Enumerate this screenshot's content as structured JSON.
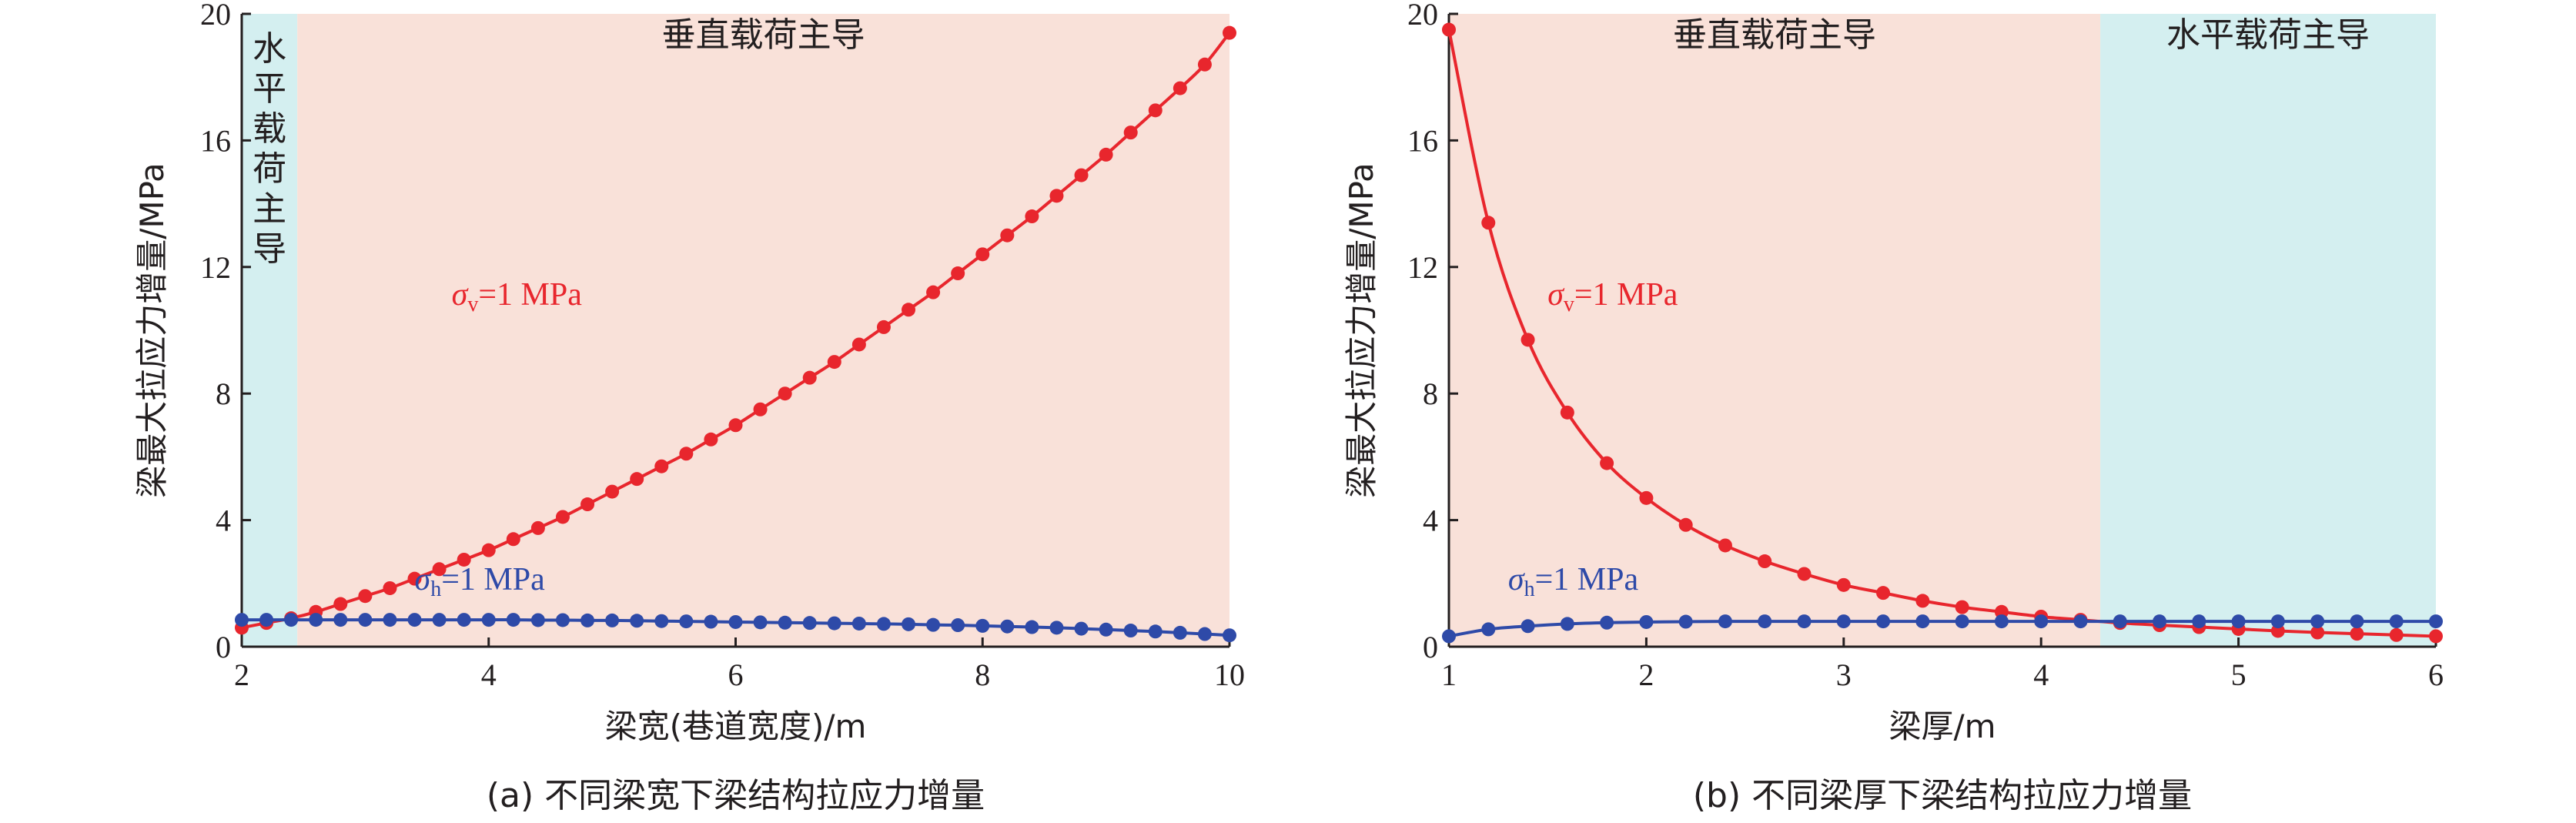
{
  "colors": {
    "red": "#e8262d",
    "blue": "#2e4aa8",
    "pink_region": "#f9e1d9",
    "cyan_region": "#d4eff0",
    "axis": "#231f20"
  },
  "chart_data": [
    {
      "type": "line",
      "xlabel": "梁宽(巷道宽度)/m",
      "ylabel": "梁最大拉应力增量/MPa",
      "caption": "(a) 不同梁宽下梁结构拉应力增量",
      "xlim": [
        2,
        10
      ],
      "ylim": [
        0,
        20
      ],
      "xticks": [
        2,
        4,
        6,
        8,
        10
      ],
      "yticks": [
        0,
        4,
        8,
        12,
        16,
        20
      ],
      "regions": [
        {
          "label": "水平载荷主导",
          "x0": 2,
          "x1": 2.45,
          "color": "cyan",
          "vertical": true
        },
        {
          "label": "垂直载荷主导",
          "x0": 2.45,
          "x1": 10,
          "color": "pink",
          "vertical": false
        }
      ],
      "series": [
        {
          "name_main": "σ",
          "name_sub": "v",
          "name_rest": "=1 MPa",
          "color": "red",
          "label_at": [
            3.7,
            10.8
          ],
          "x": [
            2,
            2.2,
            2.4,
            2.6,
            2.8,
            3,
            3.2,
            3.4,
            3.6,
            3.8,
            4,
            4.2,
            4.4,
            4.6,
            4.8,
            5,
            5.2,
            5.4,
            5.6,
            5.8,
            6,
            6.2,
            6.4,
            6.6,
            6.8,
            7,
            7.2,
            7.4,
            7.6,
            7.8,
            8,
            8.2,
            8.4,
            8.6,
            8.8,
            9,
            9.2,
            9.4,
            9.6,
            9.8,
            10
          ],
          "y": [
            0.6,
            0.75,
            0.9,
            1.1,
            1.35,
            1.6,
            1.85,
            2.15,
            2.45,
            2.75,
            3.05,
            3.4,
            3.75,
            4.1,
            4.5,
            4.9,
            5.3,
            5.7,
            6.1,
            6.55,
            7.0,
            7.5,
            8.0,
            8.5,
            9.0,
            9.55,
            10.1,
            10.65,
            11.2,
            11.8,
            12.4,
            13.0,
            13.6,
            14.25,
            14.9,
            15.55,
            16.25,
            16.95,
            17.65,
            18.4,
            19.4
          ]
        },
        {
          "name_main": "σ",
          "name_sub": "h",
          "name_rest": "=1 MPa",
          "color": "blue",
          "label_at": [
            3.4,
            1.8
          ],
          "x": [
            2,
            2.2,
            2.4,
            2.6,
            2.8,
            3,
            3.2,
            3.4,
            3.6,
            3.8,
            4,
            4.2,
            4.4,
            4.6,
            4.8,
            5,
            5.2,
            5.4,
            5.6,
            5.8,
            6,
            6.2,
            6.4,
            6.6,
            6.8,
            7,
            7.2,
            7.4,
            7.6,
            7.8,
            8,
            8.2,
            8.4,
            8.6,
            8.8,
            9,
            9.2,
            9.4,
            9.6,
            9.8,
            10
          ],
          "y": [
            0.85,
            0.85,
            0.85,
            0.85,
            0.85,
            0.85,
            0.85,
            0.85,
            0.85,
            0.85,
            0.85,
            0.85,
            0.84,
            0.84,
            0.83,
            0.83,
            0.82,
            0.81,
            0.8,
            0.79,
            0.78,
            0.77,
            0.76,
            0.75,
            0.74,
            0.73,
            0.72,
            0.71,
            0.69,
            0.68,
            0.66,
            0.64,
            0.62,
            0.6,
            0.57,
            0.54,
            0.51,
            0.48,
            0.44,
            0.4,
            0.36
          ]
        }
      ]
    },
    {
      "type": "line",
      "xlabel": "梁厚/m",
      "ylabel": "梁最大拉应力增量/MPa",
      "caption": "(b) 不同梁厚下梁结构拉应力增量",
      "xlim": [
        1,
        6
      ],
      "ylim": [
        0,
        20
      ],
      "xticks": [
        1,
        2,
        3,
        4,
        5,
        6
      ],
      "yticks": [
        0,
        4,
        8,
        12,
        16,
        20
      ],
      "regions": [
        {
          "label": "垂直载荷主导",
          "x0": 1,
          "x1": 4.3,
          "color": "pink",
          "vertical": false
        },
        {
          "label": "水平载荷主导",
          "x0": 4.3,
          "x1": 6,
          "color": "cyan",
          "vertical": false
        }
      ],
      "series": [
        {
          "name_main": "σ",
          "name_sub": "v",
          "name_rest": "=1 MPa",
          "color": "red",
          "label_at": [
            1.5,
            10.8
          ],
          "x": [
            1,
            1.2,
            1.4,
            1.6,
            1.8,
            2,
            2.2,
            2.4,
            2.6,
            2.8,
            3,
            3.2,
            3.4,
            3.6,
            3.8,
            4,
            4.2,
            4.4,
            4.6,
            4.8,
            5,
            5.2,
            5.4,
            5.6,
            5.8,
            6
          ],
          "y": [
            19.5,
            13.4,
            9.7,
            7.4,
            5.8,
            4.7,
            3.85,
            3.2,
            2.7,
            2.3,
            1.95,
            1.7,
            1.45,
            1.25,
            1.1,
            0.95,
            0.85,
            0.75,
            0.68,
            0.62,
            0.56,
            0.5,
            0.45,
            0.41,
            0.37,
            0.33
          ]
        },
        {
          "name_main": "σ",
          "name_sub": "h",
          "name_rest": "=1 MPa",
          "color": "blue",
          "label_at": [
            1.3,
            1.8
          ],
          "x": [
            1,
            1.2,
            1.4,
            1.6,
            1.8,
            2,
            2.2,
            2.4,
            2.6,
            2.8,
            3,
            3.2,
            3.4,
            3.6,
            3.8,
            4,
            4.2,
            4.4,
            4.6,
            4.8,
            5,
            5.2,
            5.4,
            5.6,
            5.8,
            6
          ],
          "y": [
            0.33,
            0.55,
            0.65,
            0.72,
            0.76,
            0.78,
            0.79,
            0.8,
            0.8,
            0.8,
            0.8,
            0.8,
            0.8,
            0.8,
            0.8,
            0.8,
            0.8,
            0.8,
            0.8,
            0.8,
            0.8,
            0.8,
            0.8,
            0.8,
            0.8,
            0.8
          ]
        }
      ]
    }
  ]
}
